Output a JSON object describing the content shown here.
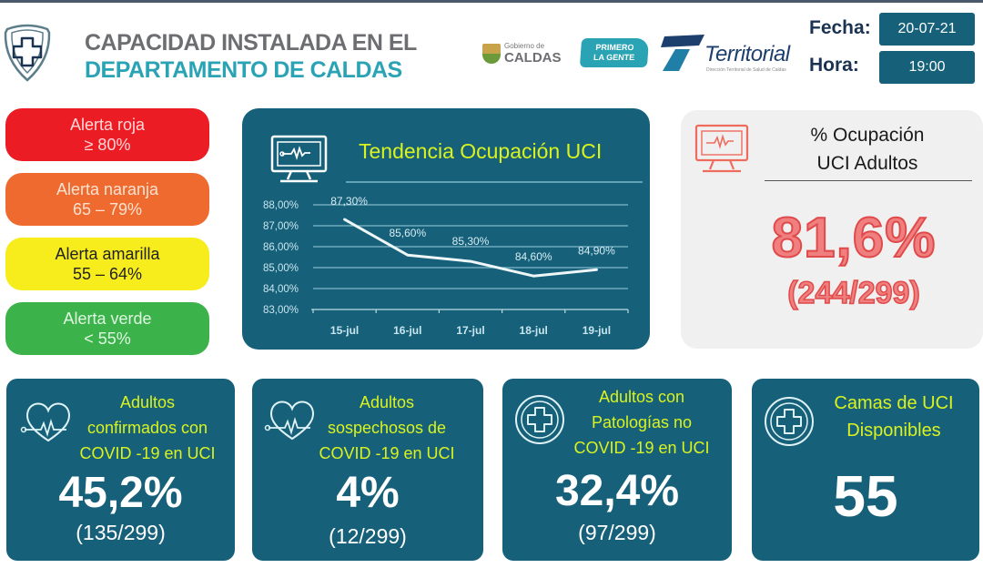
{
  "header": {
    "title_line1": "CAPACIDAD INSTALADA EN EL",
    "title_line2": "DEPARTAMENTO DE CALDAS",
    "logos": {
      "caldas_small": "Gobierno de",
      "caldas_big": "CALDAS",
      "primero_line1": "PRIMERO",
      "primero_line2": "LA GENTE",
      "territorial": "Territorial",
      "territorial_sub": "Dirección Territorial de Salud de Caldas"
    },
    "fecha_label": "Fecha:",
    "fecha_value": "20-07-21",
    "hora_label": "Hora:",
    "hora_value": "19:00"
  },
  "alerts": [
    {
      "name": "Alerta roja",
      "range": "≥ 80%",
      "color": "#ec1c24"
    },
    {
      "name": "Alerta naranja",
      "range": "65 – 79%",
      "color": "#ef6a2e"
    },
    {
      "name": "Alerta amarilla",
      "range": "55 – 64%",
      "color": "#f7ec1c"
    },
    {
      "name": "Alerta verde",
      "range": "< 55%",
      "color": "#3cb24a"
    }
  ],
  "trend": {
    "title": "Tendencia Ocupación UCI"
  },
  "chart_data": {
    "type": "line",
    "title": "Tendencia Ocupación UCI",
    "categories": [
      "15-jul",
      "16-jul",
      "17-jul",
      "18-jul",
      "19-jul"
    ],
    "values": [
      87.3,
      85.6,
      85.3,
      84.6,
      84.9
    ],
    "data_labels": [
      "87,30%",
      "85,60%",
      "85,30%",
      "84,60%",
      "84,90%"
    ],
    "y_ticks": [
      "83,00%",
      "84,00%",
      "85,00%",
      "86,00%",
      "87,00%",
      "88,00%"
    ],
    "ylim": [
      83,
      88
    ],
    "xlabel": "",
    "ylabel": "",
    "grid": true,
    "legend": "none"
  },
  "occupancy": {
    "title_line1": "% Ocupación",
    "title_line2": "UCI Adultos",
    "percent": "81,6%",
    "fraction": "(244/299)"
  },
  "cards": [
    {
      "label_lines": [
        "Adultos",
        "confirmados con",
        "COVID -19 en UCI"
      ],
      "value": "45,2%",
      "fraction": "(135/299)",
      "icon": "heart-pulse-icon"
    },
    {
      "label_lines": [
        "Adultos",
        "sospechosos de",
        "COVID -19 en UCI"
      ],
      "value": "4%",
      "fraction": "(12/299)",
      "icon": "heart-pulse-icon"
    },
    {
      "label_lines": [
        "Adultos con",
        "Patologías no",
        "COVID -19 en UCI"
      ],
      "value": "32,4%",
      "fraction": "(97/299)",
      "icon": "medical-cross-icon"
    },
    {
      "label_lines": [
        "Camas de UCI",
        "Disponibles"
      ],
      "value": "55",
      "icon": "medical-cross-icon"
    }
  ],
  "colors": {
    "panel_blue": "#16607a",
    "title_yellow": "#d9f31f",
    "title_gray": "#6d6e71",
    "title_teal": "#2aa3b4",
    "occupancy_red": "#f08080"
  }
}
